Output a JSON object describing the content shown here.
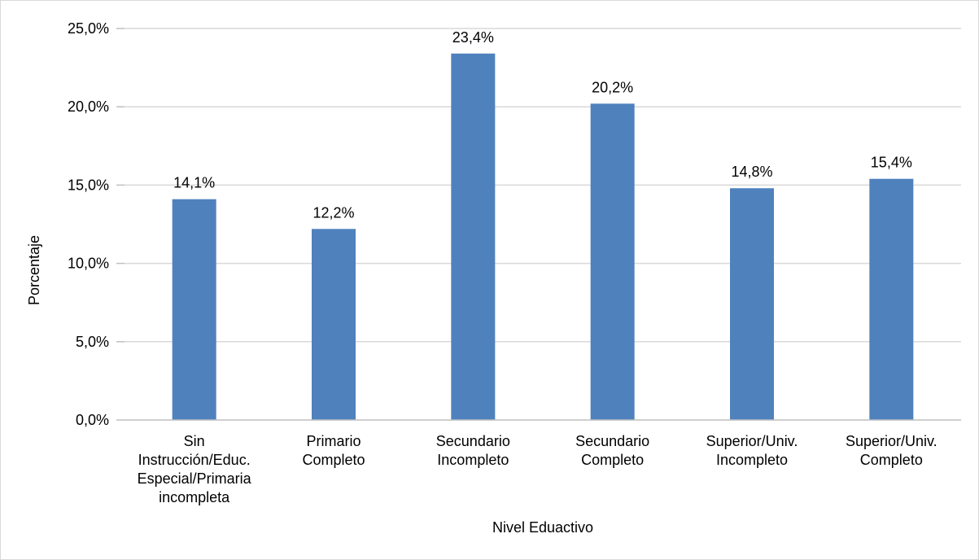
{
  "chart_data": {
    "type": "bar",
    "title": "",
    "xlabel": "Nivel Eduactivo",
    "ylabel": "Porcentaje",
    "ylim": [
      0,
      25
    ],
    "y_ticks": [
      {
        "value": 0,
        "label": "0,0%"
      },
      {
        "value": 5,
        "label": "5,0%"
      },
      {
        "value": 10,
        "label": "10,0%"
      },
      {
        "value": 15,
        "label": "15,0%"
      },
      {
        "value": 20,
        "label": "20,0%"
      },
      {
        "value": 25,
        "label": "25,0%"
      }
    ],
    "grid": true,
    "legend": "none",
    "categories": [
      [
        "Sin",
        "Instrucción/Educ.",
        "Especial/Primaria",
        "incompleta"
      ],
      [
        "Primario",
        "Completo"
      ],
      [
        "Secundario",
        "Incompleto"
      ],
      [
        "Secundario",
        "Completo"
      ],
      [
        "Superior/Univ.",
        "Incompleto"
      ],
      [
        "Superior/Univ.",
        "Completo"
      ]
    ],
    "values": [
      14.1,
      12.2,
      23.4,
      20.2,
      14.8,
      15.4
    ],
    "data_labels": [
      "14,1%",
      "12,2%",
      "23,4%",
      "20,2%",
      "14,8%",
      "15,4%"
    ],
    "colors": {
      "bar": "#4f81bd",
      "grid": "#d9d9d9",
      "axis": "#bfbfbf"
    }
  }
}
